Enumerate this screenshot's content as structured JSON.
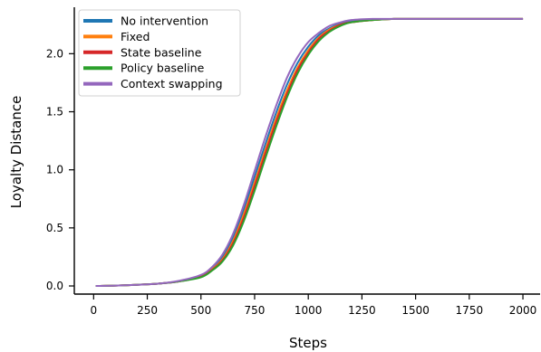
{
  "chart_data": {
    "type": "line",
    "title": "",
    "xlabel": "Steps",
    "ylabel": "Loyalty Distance",
    "xlim": [
      -90,
      2080
    ],
    "ylim": [
      -0.07,
      2.4
    ],
    "xticks": [
      0,
      250,
      500,
      750,
      1000,
      1250,
      1500,
      1750,
      2000
    ],
    "yticks": [
      0.0,
      0.5,
      1.0,
      1.5,
      2.0
    ],
    "xtick_labels": [
      "0",
      "250",
      "500",
      "750",
      "1000",
      "1250",
      "1500",
      "1750",
      "2000"
    ],
    "ytick_labels": [
      "0.0",
      "0.5",
      "1.0",
      "1.5",
      "2.0"
    ],
    "grid": false,
    "legend_position": "top-left",
    "x": [
      10,
      100,
      200,
      300,
      400,
      500,
      550,
      600,
      650,
      700,
      750,
      800,
      850,
      900,
      950,
      1000,
      1050,
      1100,
      1150,
      1200,
      1300,
      1400,
      1500,
      1700,
      2000
    ],
    "series": [
      {
        "name": "No intervention",
        "color": "#1f77b4",
        "values": [
          0.0,
          0.003,
          0.01,
          0.02,
          0.04,
          0.09,
          0.15,
          0.25,
          0.42,
          0.66,
          0.94,
          1.22,
          1.49,
          1.73,
          1.92,
          2.06,
          2.16,
          2.22,
          2.26,
          2.28,
          2.29,
          2.3,
          2.3,
          2.3,
          2.3
        ]
      },
      {
        "name": "Fixed",
        "color": "#ff7f0e",
        "values": [
          0.0,
          0.003,
          0.01,
          0.02,
          0.04,
          0.085,
          0.14,
          0.23,
          0.39,
          0.62,
          0.89,
          1.17,
          1.44,
          1.68,
          1.88,
          2.03,
          2.14,
          2.21,
          2.25,
          2.27,
          2.29,
          2.3,
          2.3,
          2.3,
          2.3
        ]
      },
      {
        "name": "State baseline",
        "color": "#d62728",
        "values": [
          0.0,
          0.003,
          0.01,
          0.02,
          0.04,
          0.08,
          0.135,
          0.22,
          0.37,
          0.59,
          0.86,
          1.14,
          1.41,
          1.65,
          1.86,
          2.01,
          2.13,
          2.2,
          2.25,
          2.27,
          2.29,
          2.3,
          2.3,
          2.3,
          2.3
        ]
      },
      {
        "name": "Policy baseline",
        "color": "#2ca02c",
        "values": [
          0.0,
          0.003,
          0.01,
          0.02,
          0.04,
          0.075,
          0.13,
          0.21,
          0.35,
          0.56,
          0.82,
          1.1,
          1.37,
          1.62,
          1.83,
          1.99,
          2.11,
          2.19,
          2.24,
          2.27,
          2.29,
          2.3,
          2.3,
          2.3,
          2.3
        ]
      },
      {
        "name": "Context swapping",
        "color": "#9467bd",
        "values": [
          0.0,
          0.003,
          0.01,
          0.02,
          0.045,
          0.095,
          0.16,
          0.27,
          0.45,
          0.7,
          0.99,
          1.28,
          1.55,
          1.79,
          1.97,
          2.1,
          2.18,
          2.24,
          2.27,
          2.29,
          2.3,
          2.3,
          2.3,
          2.3,
          2.3
        ]
      }
    ]
  }
}
